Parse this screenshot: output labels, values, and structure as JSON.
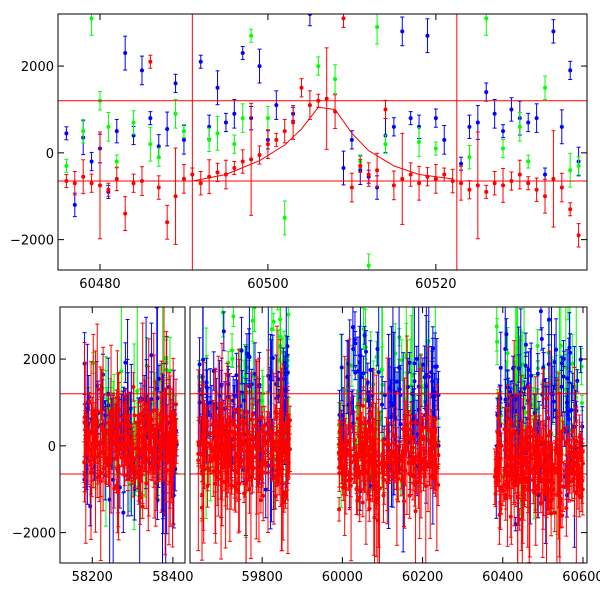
{
  "chart_data": [
    {
      "type": "scatter",
      "xlim": [
        60475,
        60538
      ],
      "ylim": [
        -2700,
        3200
      ],
      "xticks": [
        60480,
        60500,
        60520
      ],
      "xtick_labels": [
        "60480",
        "60500",
        "60520"
      ],
      "yticks": [
        -2000,
        0,
        2000
      ],
      "ytick_labels": [
        "−2000",
        "0",
        "2000"
      ],
      "hlines": [
        1200,
        -650
      ],
      "vlines": [
        60491,
        60522.5
      ],
      "colors": {
        "blue": "#0000ff",
        "green": "#00ff00",
        "red": "#ff0000"
      },
      "curve": {
        "x": [
          60491,
          60495,
          60499,
          60502,
          60504,
          60506,
          60508,
          60510,
          60512,
          60515,
          60518,
          60522
        ],
        "y": [
          -650,
          -500,
          -180,
          180,
          550,
          1050,
          1000,
          450,
          50,
          -300,
          -500,
          -600
        ]
      },
      "series": [
        {
          "color": "blue",
          "points": [
            [
              60476,
              450
            ],
            [
              60477,
              -1200
            ],
            [
              60478,
              350
            ],
            [
              60479,
              -200
            ],
            [
              60480,
              100
            ],
            [
              60481,
              -900
            ],
            [
              60482,
              500
            ],
            [
              60483,
              2300
            ],
            [
              60484,
              400
            ],
            [
              60485,
              1900
            ],
            [
              60486,
              800
            ],
            [
              60487,
              150
            ],
            [
              60488,
              550
            ],
            [
              60489,
              1600
            ],
            [
              60490,
              300
            ],
            [
              60492,
              2100
            ],
            [
              60493,
              600
            ],
            [
              60494,
              1500
            ],
            [
              60495,
              700
            ],
            [
              60496,
              900
            ],
            [
              60497,
              2300
            ],
            [
              60498,
              800
            ],
            [
              60499,
              2000
            ],
            [
              60500,
              300
            ],
            [
              60501,
              1100
            ],
            [
              60503,
              900
            ],
            [
              60505,
              3200
            ],
            [
              60509,
              -350
            ],
            [
              60510,
              300
            ],
            [
              60511,
              -400
            ],
            [
              60512,
              -550
            ],
            [
              60513,
              -800
            ],
            [
              60514,
              400
            ],
            [
              60515,
              600
            ],
            [
              60516,
              2800
            ],
            [
              60517,
              800
            ],
            [
              60518,
              600
            ],
            [
              60519,
              2700
            ],
            [
              60520,
              800
            ],
            [
              60521,
              300
            ],
            [
              60523,
              -250
            ],
            [
              60524,
              600
            ],
            [
              60525,
              700
            ],
            [
              60526,
              1400
            ],
            [
              60527,
              900
            ],
            [
              60528,
              500
            ],
            [
              60529,
              1000
            ],
            [
              60530,
              800
            ],
            [
              60531,
              700
            ],
            [
              60532,
              800
            ],
            [
              60533,
              -500
            ],
            [
              60534,
              2800
            ],
            [
              60535,
              600
            ],
            [
              60536,
              1900
            ],
            [
              60537,
              -200
            ]
          ]
        },
        {
          "color": "green",
          "points": [
            [
              60476,
              -300
            ],
            [
              60478,
              500
            ],
            [
              60479,
              3100
            ],
            [
              60480,
              1200
            ],
            [
              60481,
              600
            ],
            [
              60482,
              -200
            ],
            [
              60484,
              700
            ],
            [
              60486,
              200
            ],
            [
              60487,
              -100
            ],
            [
              60489,
              900
            ],
            [
              60490,
              500
            ],
            [
              60493,
              300
            ],
            [
              60494,
              450
            ],
            [
              60496,
              200
            ],
            [
              60497,
              800
            ],
            [
              60498,
              2700
            ],
            [
              60500,
              800
            ],
            [
              60502,
              -1500
            ],
            [
              60506,
              2000
            ],
            [
              60508,
              1700
            ],
            [
              60511,
              -200
            ],
            [
              60512,
              -2600
            ],
            [
              60513,
              2900
            ],
            [
              60514,
              200
            ],
            [
              60518,
              250
            ],
            [
              60520,
              100
            ],
            [
              60524,
              -100
            ],
            [
              60526,
              3100
            ],
            [
              60528,
              100
            ],
            [
              60530,
              600
            ],
            [
              60531,
              -200
            ],
            [
              60533,
              1500
            ],
            [
              60536,
              -400
            ],
            [
              60537,
              -300
            ]
          ]
        },
        {
          "color": "red",
          "points": [
            [
              60476,
              -650
            ],
            [
              60477,
              -700
            ],
            [
              60478,
              -550
            ],
            [
              60479,
              -700
            ],
            [
              60480,
              -750
            ],
            [
              60481,
              -850
            ],
            [
              60482,
              -600
            ],
            [
              60483,
              -1400
            ],
            [
              60484,
              -700
            ],
            [
              60485,
              -650
            ],
            [
              60486,
              2100
            ],
            [
              60487,
              -800
            ],
            [
              60488,
              -1600
            ],
            [
              60489,
              -1000
            ],
            [
              60490,
              -600
            ],
            [
              60491,
              -500
            ],
            [
              60492,
              -700
            ],
            [
              60493,
              -550
            ],
            [
              60494,
              -450
            ],
            [
              60495,
              -500
            ],
            [
              60496,
              -350
            ],
            [
              60497,
              -200
            ],
            [
              60498,
              -150
            ],
            [
              60499,
              -50
            ],
            [
              60500,
              200
            ],
            [
              60501,
              300
            ],
            [
              60502,
              500
            ],
            [
              60503,
              700
            ],
            [
              60504,
              1500
            ],
            [
              60505,
              1100
            ],
            [
              60506,
              1200
            ],
            [
              60507,
              1250
            ],
            [
              60508,
              950
            ],
            [
              60509,
              3100
            ],
            [
              60510,
              -800
            ],
            [
              60511,
              -300
            ],
            [
              60512,
              -500
            ],
            [
              60513,
              -400
            ],
            [
              60514,
              1000
            ],
            [
              60515,
              -750
            ],
            [
              60516,
              -600
            ],
            [
              60517,
              -500
            ],
            [
              60518,
              -700
            ],
            [
              60519,
              -550
            ],
            [
              60520,
              -600
            ],
            [
              60521,
              -500
            ],
            [
              60522,
              -650
            ],
            [
              60523,
              -700
            ],
            [
              60524,
              -850
            ],
            [
              60525,
              -750
            ],
            [
              60526,
              -900
            ],
            [
              60527,
              -700
            ],
            [
              60528,
              -750
            ],
            [
              60529,
              -650
            ],
            [
              60530,
              -500
            ],
            [
              60531,
              -700
            ],
            [
              60532,
              -850
            ],
            [
              60533,
              -1000
            ],
            [
              60534,
              -600
            ],
            [
              60535,
              -800
            ],
            [
              60536,
              -1300
            ],
            [
              60537,
              -1900
            ]
          ]
        }
      ]
    },
    {
      "type": "scatter",
      "xlim": [
        58120,
        60610
      ],
      "ylim": [
        -2700,
        3200
      ],
      "xticks": [
        58200,
        58400,
        59800,
        60000,
        60200,
        60400,
        60600
      ],
      "xtick_labels": [
        "58200",
        "58400",
        "59800",
        "60000",
        "60200",
        "60400",
        "60600"
      ],
      "yticks": [
        -2000,
        0,
        2000
      ],
      "ytick_labels": [
        "−2000",
        "0",
        "2000"
      ],
      "hlines": [
        1200,
        -650
      ],
      "colors": {
        "blue": "#0000ff",
        "green": "#00ff00",
        "red": "#ff0000"
      },
      "segments": [
        {
          "x": [
            58120,
            58430
          ],
          "xticks": [
            58200,
            58400
          ]
        },
        {
          "x": [
            59620,
            60610
          ],
          "xticks": [
            59800,
            60000,
            60200,
            60400,
            60600
          ]
        }
      ],
      "seasons": [
        {
          "x": [
            58180,
            58410
          ],
          "red_mean": 100,
          "blue_mean": 200,
          "green_mean": 600
        },
        {
          "x": [
            59640,
            59870
          ],
          "red_mean": -150,
          "blue_mean": 800,
          "green_mean": 1200
        },
        {
          "x": [
            59990,
            60240
          ],
          "red_mean": -300,
          "blue_mean": 900,
          "green_mean": 1000
        },
        {
          "x": [
            60380,
            60600
          ],
          "red_mean": -500,
          "blue_mean": 900,
          "green_mean": 1100
        }
      ]
    }
  ]
}
